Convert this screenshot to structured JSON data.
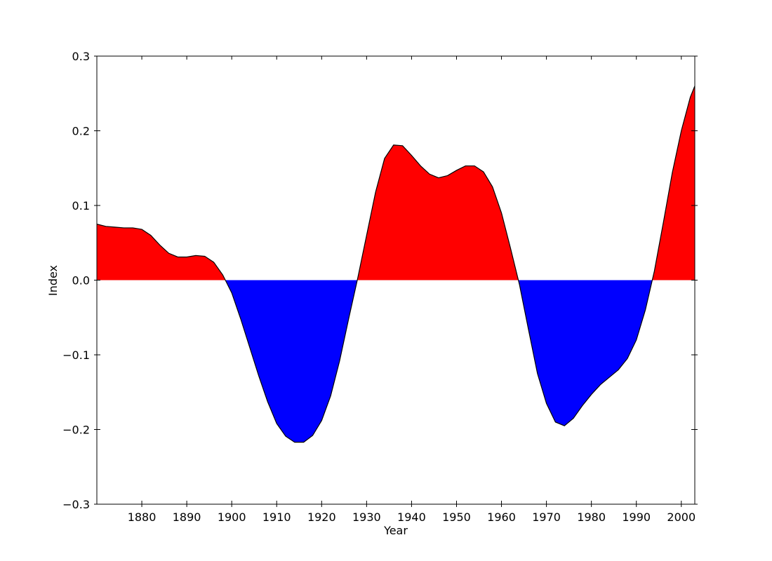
{
  "chart_data": {
    "type": "area",
    "title": "",
    "xlabel": "Year",
    "ylabel": "Index",
    "xlim": [
      1870,
      2003
    ],
    "ylim": [
      -0.3,
      0.3
    ],
    "x_ticks": [
      1880,
      1890,
      1900,
      1910,
      1920,
      1930,
      1940,
      1950,
      1960,
      1970,
      1980,
      1990,
      2000
    ],
    "x_tick_labels": [
      "1880",
      "1890",
      "1900",
      "1910",
      "1920",
      "1930",
      "1940",
      "1950",
      "1960",
      "1970",
      "1980",
      "1990",
      "2000"
    ],
    "y_ticks": [
      -0.3,
      -0.2,
      -0.1,
      0.0,
      0.1,
      0.2,
      0.3
    ],
    "y_tick_labels": [
      "−0.3",
      "−0.2",
      "−0.1",
      "0.0",
      "0.1",
      "0.2",
      "0.3"
    ],
    "grid": false,
    "positive_color": "#ff0000",
    "negative_color": "#0000ff",
    "line_color": "#000000",
    "x": [
      1870,
      1872,
      1874,
      1876,
      1878,
      1880,
      1882,
      1884,
      1886,
      1888,
      1890,
      1892,
      1894,
      1896,
      1898,
      1900,
      1902,
      1904,
      1906,
      1908,
      1910,
      1912,
      1914,
      1916,
      1918,
      1920,
      1922,
      1924,
      1926,
      1928,
      1930,
      1932,
      1934,
      1936,
      1938,
      1940,
      1942,
      1944,
      1946,
      1948,
      1950,
      1952,
      1954,
      1956,
      1958,
      1960,
      1962,
      1964,
      1966,
      1968,
      1970,
      1972,
      1974,
      1976,
      1978,
      1980,
      1982,
      1984,
      1986,
      1988,
      1990,
      1992,
      1994,
      1996,
      1998,
      2000,
      2002,
      2003
    ],
    "y": [
      0.075,
      0.072,
      0.071,
      0.07,
      0.07,
      0.068,
      0.06,
      0.047,
      0.036,
      0.031,
      0.031,
      0.033,
      0.032,
      0.024,
      0.007,
      -0.017,
      -0.052,
      -0.09,
      -0.128,
      -0.163,
      -0.192,
      -0.209,
      -0.217,
      -0.217,
      -0.208,
      -0.188,
      -0.155,
      -0.108,
      -0.052,
      0.002,
      0.06,
      0.118,
      0.163,
      0.181,
      0.18,
      0.167,
      0.153,
      0.142,
      0.137,
      0.14,
      0.147,
      0.153,
      0.153,
      0.145,
      0.125,
      0.09,
      0.043,
      -0.006,
      -0.066,
      -0.125,
      -0.165,
      -0.19,
      -0.195,
      -0.185,
      -0.168,
      -0.153,
      -0.14,
      -0.13,
      -0.12,
      -0.105,
      -0.08,
      -0.04,
      0.012,
      0.077,
      0.144,
      0.2,
      0.245,
      0.26
    ]
  }
}
